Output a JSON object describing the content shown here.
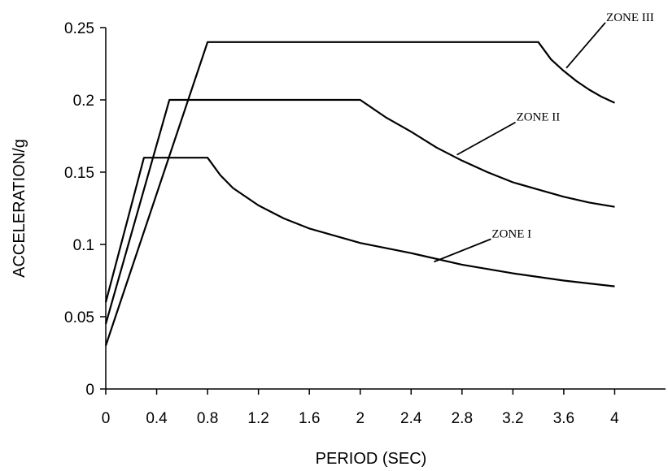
{
  "chart_data": {
    "type": "line",
    "title": "",
    "xlabel": "PERIOD (SEC)",
    "ylabel": "ACCELERATION/g",
    "xlim": [
      0,
      4.4
    ],
    "ylim": [
      0,
      0.25
    ],
    "xticks": [
      "0",
      "0.4",
      "0.8",
      "1.2",
      "1.6",
      "2",
      "2.4",
      "2.8",
      "3.2",
      "3.6",
      "4"
    ],
    "yticks": [
      "0",
      "0.05",
      "0.1",
      "0.15",
      "0.2",
      "0.25"
    ],
    "grid": false,
    "legend": "none",
    "series": [
      {
        "name": "ZONE I",
        "points": [
          [
            0,
            0.06
          ],
          [
            0.3,
            0.16
          ],
          [
            0.8,
            0.16
          ],
          [
            0.9,
            0.148
          ],
          [
            1.0,
            0.139
          ],
          [
            1.2,
            0.127
          ],
          [
            1.4,
            0.118
          ],
          [
            1.6,
            0.111
          ],
          [
            2.0,
            0.101
          ],
          [
            2.4,
            0.094
          ],
          [
            2.8,
            0.086
          ],
          [
            3.2,
            0.08
          ],
          [
            3.6,
            0.075
          ],
          [
            4.0,
            0.071
          ]
        ]
      },
      {
        "name": "ZONE II",
        "points": [
          [
            0,
            0.045
          ],
          [
            0.5,
            0.2
          ],
          [
            2.0,
            0.2
          ],
          [
            2.2,
            0.188
          ],
          [
            2.4,
            0.178
          ],
          [
            2.6,
            0.167
          ],
          [
            2.8,
            0.158
          ],
          [
            3.0,
            0.15
          ],
          [
            3.2,
            0.143
          ],
          [
            3.4,
            0.138
          ],
          [
            3.6,
            0.133
          ],
          [
            3.8,
            0.129
          ],
          [
            4.0,
            0.126
          ]
        ]
      },
      {
        "name": "ZONE III",
        "points": [
          [
            0,
            0.03
          ],
          [
            0.8,
            0.24
          ],
          [
            3.4,
            0.24
          ],
          [
            3.5,
            0.228
          ],
          [
            3.6,
            0.22
          ],
          [
            3.7,
            0.213
          ],
          [
            3.8,
            0.207
          ],
          [
            3.9,
            0.202
          ],
          [
            4.0,
            0.198
          ]
        ]
      }
    ],
    "annotations": [
      {
        "text": "ZONE I",
        "target": [
          2.58,
          0.088
        ]
      },
      {
        "text": "ZONE II",
        "target": [
          2.76,
          0.162
        ]
      },
      {
        "text": "ZONE III",
        "target": [
          3.62,
          0.222
        ]
      }
    ]
  }
}
